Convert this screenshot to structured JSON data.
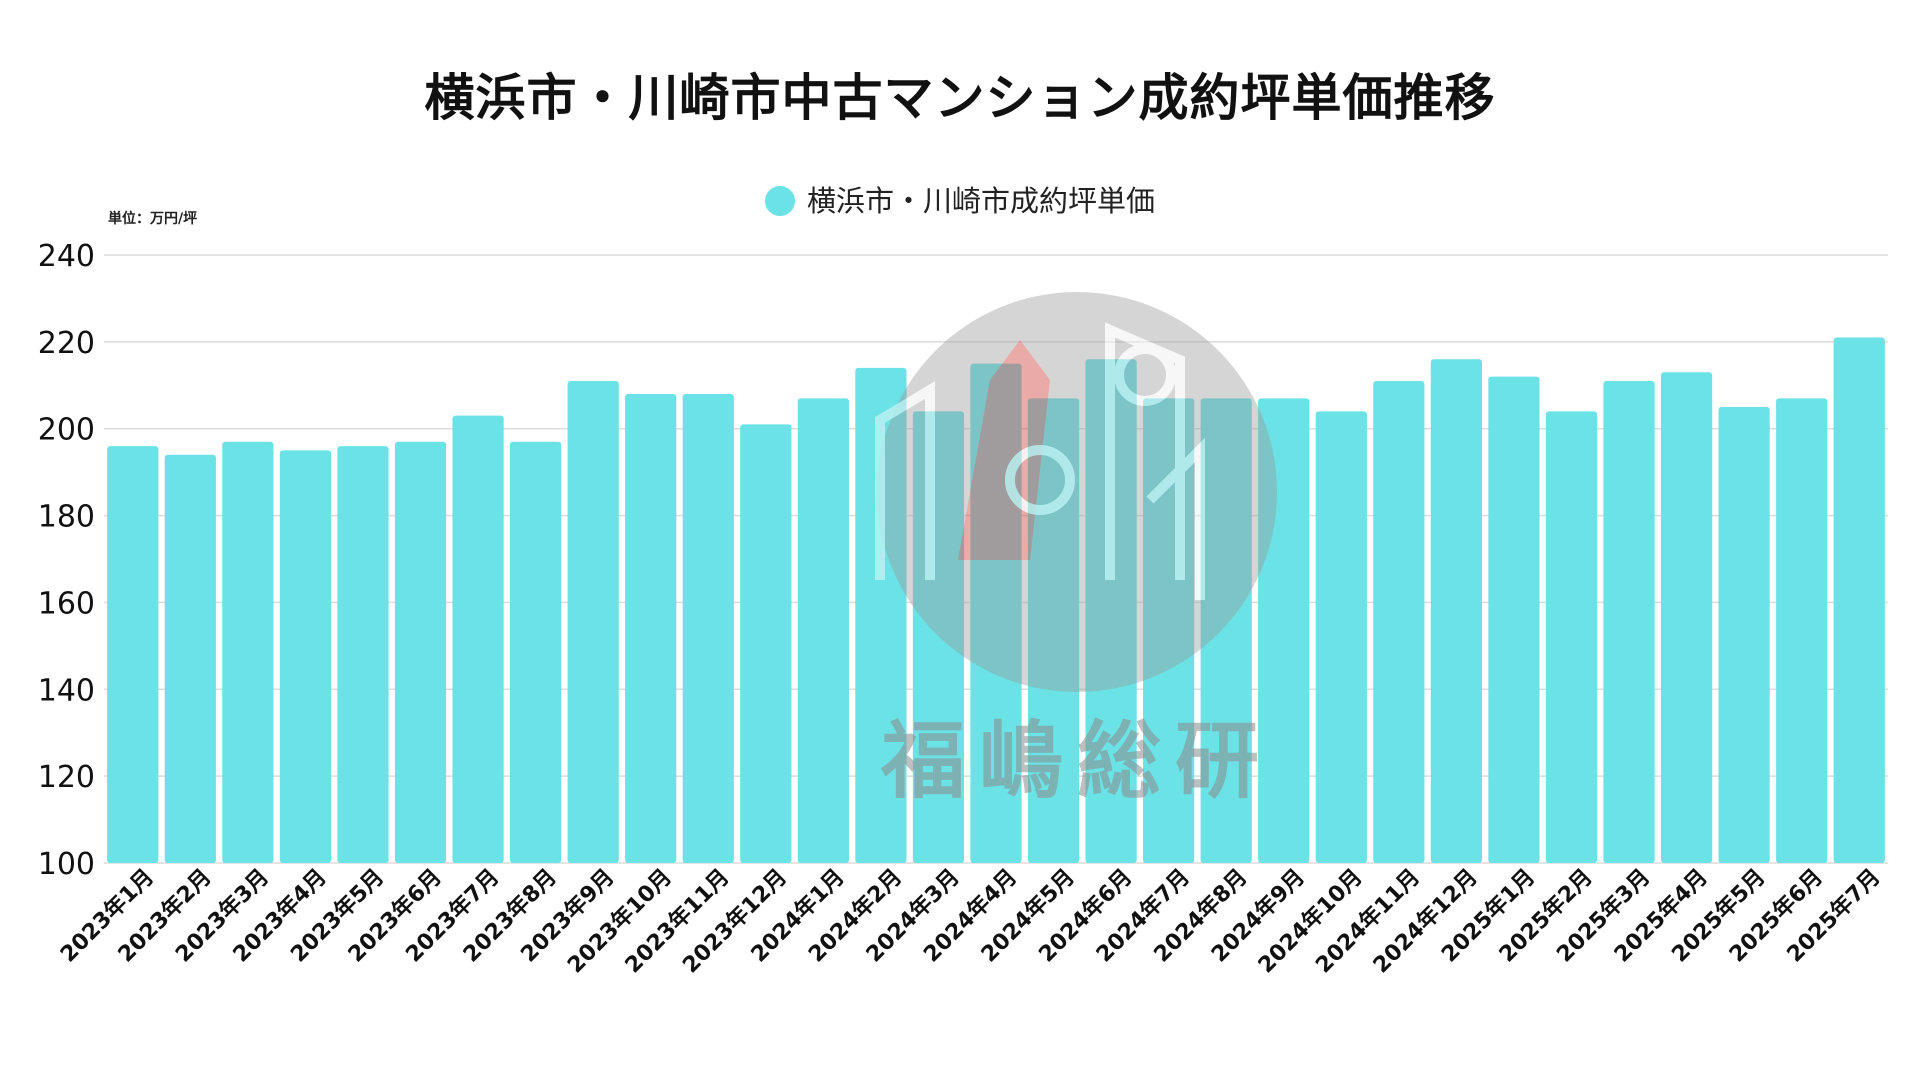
{
  "chart_data": {
    "type": "bar",
    "title": "横浜市・川崎市中古マンション成約坪単価推移",
    "unit_label": "単位：万円/坪",
    "xlabel": "",
    "ylabel": "",
    "ylim": [
      100,
      240
    ],
    "yticks": [
      100,
      120,
      140,
      160,
      180,
      200,
      220,
      240
    ],
    "grid": true,
    "legend_position": "top-center",
    "categories": [
      "2023年1月",
      "2023年2月",
      "2023年3月",
      "2023年4月",
      "2023年5月",
      "2023年6月",
      "2023年7月",
      "2023年8月",
      "2023年9月",
      "2023年10月",
      "2023年11月",
      "2023年12月",
      "2024年1月",
      "2024年2月",
      "2024年3月",
      "2024年4月",
      "2024年5月",
      "2024年6月",
      "2024年7月",
      "2024年8月",
      "2024年9月",
      "2024年10月",
      "2024年11月",
      "2024年12月",
      "2025年1月",
      "2025年2月",
      "2025年3月",
      "2025年4月",
      "2025年5月",
      "2025年6月",
      "2025年7月"
    ],
    "series": [
      {
        "name": "横浜市・川崎市成約坪単価",
        "color": "#6ae2e6",
        "values": [
          196,
          194,
          197,
          195,
          196,
          197,
          203,
          197,
          211,
          208,
          208,
          201,
          207,
          214,
          204,
          215,
          207,
          216,
          207,
          207,
          207,
          204,
          211,
          216,
          212,
          204,
          211,
          213,
          205,
          207,
          221
        ]
      }
    ]
  },
  "watermark": {
    "text": "福嶋総研",
    "icon": "building-gear-logo-icon",
    "color": "#9a9a9a",
    "accent_color": "#e8433f"
  }
}
